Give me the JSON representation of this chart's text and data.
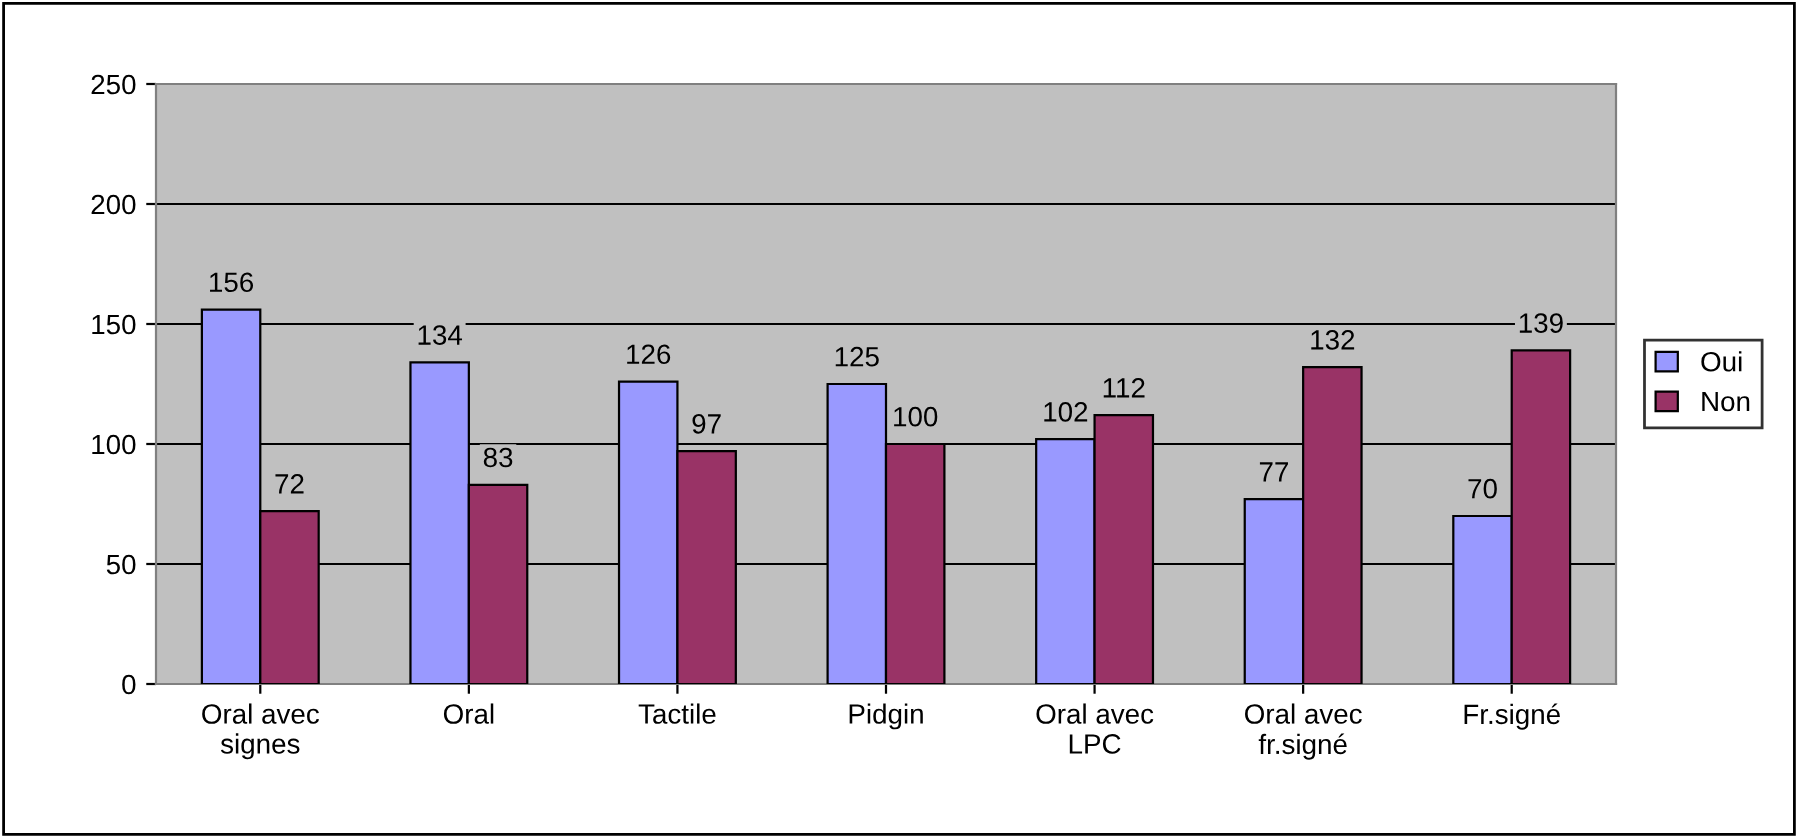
{
  "chart_data": {
    "type": "bar",
    "categories": [
      "Oral avec\nsignes",
      "Oral",
      "Tactile",
      "Pidgin",
      "Oral avec\nLPC",
      "Oral avec\nfr.signé",
      "Fr.signé"
    ],
    "series": [
      {
        "name": "Oui",
        "color": "#9999ff",
        "values": [
          156,
          134,
          126,
          125,
          102,
          77,
          70
        ]
      },
      {
        "name": "Non",
        "color": "#993366",
        "values": [
          72,
          83,
          97,
          100,
          112,
          132,
          139
        ]
      }
    ],
    "ylim": [
      0,
      250
    ],
    "yticks": [
      0,
      50,
      100,
      150,
      200,
      250
    ],
    "grid": "y",
    "legend": "right",
    "data_labels": true
  }
}
